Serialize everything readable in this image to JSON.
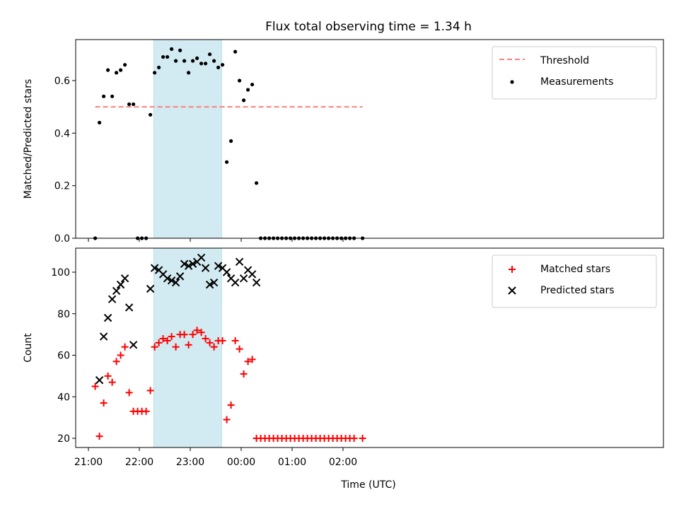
{
  "figure": {
    "title": "Flux total observing time = 1.34 h",
    "xlabel": "Time (UTC)"
  },
  "chart_data": [
    {
      "type": "scatter",
      "panel": "top",
      "ylabel": "Matched/Predicted stars",
      "ylim": [
        0,
        0.76
      ],
      "yticks": [
        0.0,
        0.2,
        0.4,
        0.6
      ],
      "ytick_labels": [
        "0.0",
        "0.2",
        "0.4",
        "0.6"
      ],
      "legend_position": "top-right",
      "shaded_interval": {
        "start": "22:17",
        "end": "23:37",
        "color": "#add8e6"
      },
      "threshold": {
        "name": "Threshold",
        "y": 0.5,
        "x_start": "21:08",
        "x_end": "02:23",
        "color": "#ff7f7f",
        "style": "dashed"
      },
      "series": [
        {
          "name": "Measurements",
          "color": "#000000",
          "marker": "dot",
          "x": [
            "21:08",
            "21:13",
            "21:18",
            "21:23",
            "21:28",
            "21:33",
            "21:38",
            "21:43",
            "21:48",
            "21:53",
            "21:58",
            "22:03",
            "22:08",
            "22:13",
            "22:18",
            "22:23",
            "22:28",
            "22:33",
            "22:38",
            "22:43",
            "22:48",
            "22:53",
            "22:58",
            "23:03",
            "23:08",
            "23:13",
            "23:18",
            "23:23",
            "23:28",
            "23:33",
            "23:38",
            "23:43",
            "23:48",
            "23:53",
            "23:58",
            "00:03",
            "00:08",
            "00:13",
            "00:18",
            "00:23",
            "00:28",
            "00:33",
            "00:38",
            "00:43",
            "00:48",
            "00:53",
            "00:58",
            "01:03",
            "01:08",
            "01:13",
            "01:18",
            "01:23",
            "01:28",
            "01:33",
            "01:38",
            "01:43",
            "01:48",
            "01:53",
            "01:58",
            "02:03",
            "02:08",
            "02:13",
            "02:23"
          ],
          "y": [
            0.0,
            0.44,
            0.54,
            0.64,
            0.54,
            0.63,
            0.64,
            0.66,
            0.51,
            0.51,
            0.0,
            0.0,
            0.0,
            0.47,
            0.63,
            0.65,
            0.69,
            0.69,
            0.72,
            0.675,
            0.715,
            0.675,
            0.63,
            0.675,
            0.685,
            0.665,
            0.665,
            0.7,
            0.675,
            0.65,
            0.66,
            0.29,
            0.37,
            0.71,
            0.6,
            0.525,
            0.565,
            0.585,
            0.21,
            0.0,
            0.0,
            0.0,
            0.0,
            0.0,
            0.0,
            0.0,
            0.0,
            0.0,
            0.0,
            0.0,
            0.0,
            0.0,
            0.0,
            0.0,
            0.0,
            0.0,
            0.0,
            0.0,
            0.0,
            0.0,
            0.0,
            0.0,
            0.0
          ]
        }
      ]
    },
    {
      "type": "scatter",
      "panel": "bottom",
      "ylabel": "Count",
      "ylim": [
        15,
        112
      ],
      "yticks": [
        20,
        40,
        60,
        80,
        100
      ],
      "ytick_labels": [
        "20",
        "40",
        "60",
        "80",
        "100"
      ],
      "xticks": [
        "21:00",
        "22:00",
        "23:00",
        "00:00",
        "01:00",
        "02:00"
      ],
      "xtick_labels": [
        "21:00",
        "22:00",
        "23:00",
        "00:00",
        "01:00",
        "02:00"
      ],
      "legend_position": "top-right",
      "shaded_interval": {
        "start": "22:17",
        "end": "23:37",
        "color": "#add8e6"
      },
      "series": [
        {
          "name": "Matched stars",
          "color": "#ff0000",
          "marker": "plus",
          "x": [
            "21:08",
            "21:13",
            "21:18",
            "21:23",
            "21:28",
            "21:33",
            "21:38",
            "21:43",
            "21:48",
            "21:53",
            "21:58",
            "22:03",
            "22:08",
            "22:13",
            "22:18",
            "22:23",
            "22:28",
            "22:33",
            "22:38",
            "22:43",
            "22:48",
            "22:53",
            "22:58",
            "23:03",
            "23:08",
            "23:13",
            "23:18",
            "23:23",
            "23:28",
            "23:33",
            "23:38",
            "23:43",
            "23:48",
            "23:53",
            "23:58",
            "00:03",
            "00:08",
            "00:13",
            "00:18",
            "00:23",
            "00:28",
            "00:33",
            "00:38",
            "00:43",
            "00:48",
            "00:53",
            "00:58",
            "01:03",
            "01:08",
            "01:13",
            "01:18",
            "01:23",
            "01:28",
            "01:33",
            "01:38",
            "01:43",
            "01:48",
            "01:53",
            "01:58",
            "02:03",
            "02:08",
            "02:13",
            "02:23"
          ],
          "y": [
            45,
            21,
            37,
            50,
            47,
            57,
            60,
            64,
            42,
            33,
            33,
            33,
            33,
            43,
            64,
            66,
            68,
            67,
            69,
            64,
            70,
            70,
            65,
            70,
            72,
            71,
            68,
            66,
            64,
            67,
            67,
            29,
            36,
            67,
            63,
            51,
            57,
            58,
            20,
            20,
            20,
            20,
            20,
            20,
            20,
            20,
            20,
            20,
            20,
            20,
            20,
            20,
            20,
            20,
            20,
            20,
            20,
            20,
            20,
            20,
            20,
            20,
            20
          ]
        },
        {
          "name": "Predicted stars",
          "color": "#000000",
          "marker": "x",
          "x": [
            "21:13",
            "21:18",
            "21:23",
            "21:28",
            "21:33",
            "21:38",
            "21:43",
            "21:48",
            "21:53",
            "22:13",
            "22:18",
            "22:23",
            "22:28",
            "22:33",
            "22:38",
            "22:43",
            "22:48",
            "22:53",
            "22:58",
            "23:03",
            "23:08",
            "23:13",
            "23:18",
            "23:23",
            "23:28",
            "23:33",
            "23:38",
            "23:43",
            "23:48",
            "23:53",
            "23:58",
            "00:03",
            "00:08",
            "00:13",
            "00:18"
          ],
          "y": [
            48,
            69,
            78,
            87,
            91,
            94,
            97,
            83,
            65,
            92,
            102,
            101,
            99,
            97,
            96,
            95,
            98,
            104,
            103,
            104,
            105,
            107,
            102,
            94,
            95,
            103,
            102,
            100,
            97,
            95,
            105,
            97,
            101,
            99,
            95
          ]
        }
      ]
    }
  ]
}
